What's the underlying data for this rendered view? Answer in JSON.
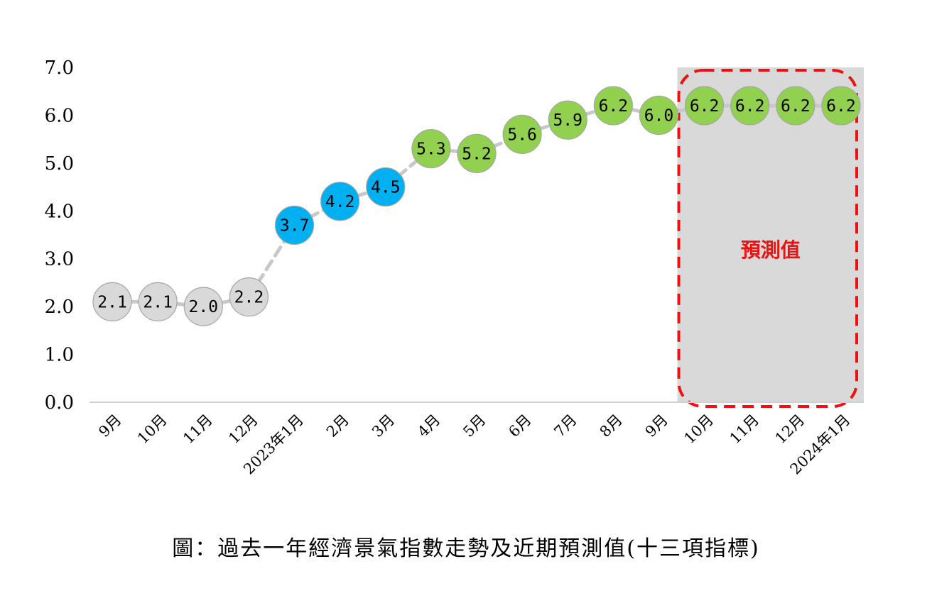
{
  "chart_data": {
    "type": "line",
    "categories": [
      "9月",
      "10月",
      "11月",
      "12月",
      "2023年1月",
      "2月",
      "3月",
      "4月",
      "5月",
      "6月",
      "7月",
      "8月",
      "9月",
      "10月",
      "11月",
      "12月",
      "2024年1月"
    ],
    "values": [
      2.1,
      2.1,
      2.0,
      2.2,
      3.7,
      4.2,
      4.5,
      5.3,
      5.2,
      5.6,
      5.9,
      6.2,
      6.0,
      6.2,
      6.2,
      6.2,
      6.2
    ],
    "data_labels": [
      "2.1",
      "2.1",
      "2.0",
      "2.2",
      "3.7",
      "4.2",
      "4.5",
      "5.3",
      "5.2",
      "5.6",
      "5.9",
      "6.2",
      "6.0",
      "6.2",
      "6.2",
      "6.2",
      "6.2"
    ],
    "point_colors": [
      "#d9d9d9",
      "#d9d9d9",
      "#d9d9d9",
      "#d9d9d9",
      "#00b0f0",
      "#00b0f0",
      "#00b0f0",
      "#92d050",
      "#92d050",
      "#92d050",
      "#92d050",
      "#92d050",
      "#92d050",
      "#92d050",
      "#92d050",
      "#92d050",
      "#92d050"
    ],
    "line_color": "#c8c8c8",
    "ylim": [
      0,
      7
    ],
    "yticks": [
      "0.0",
      "1.0",
      "2.0",
      "3.0",
      "4.0",
      "5.0",
      "6.0",
      "7.0"
    ],
    "forecast_region": {
      "from_index": 13,
      "to_index": 16,
      "label": "預測值",
      "fill": "#d9d9d9",
      "border": "#ee1111"
    },
    "grid": false,
    "legend": "none"
  },
  "caption": "圖：過去一年經濟景氣指數走勢及近期預測值(十三項指標)"
}
